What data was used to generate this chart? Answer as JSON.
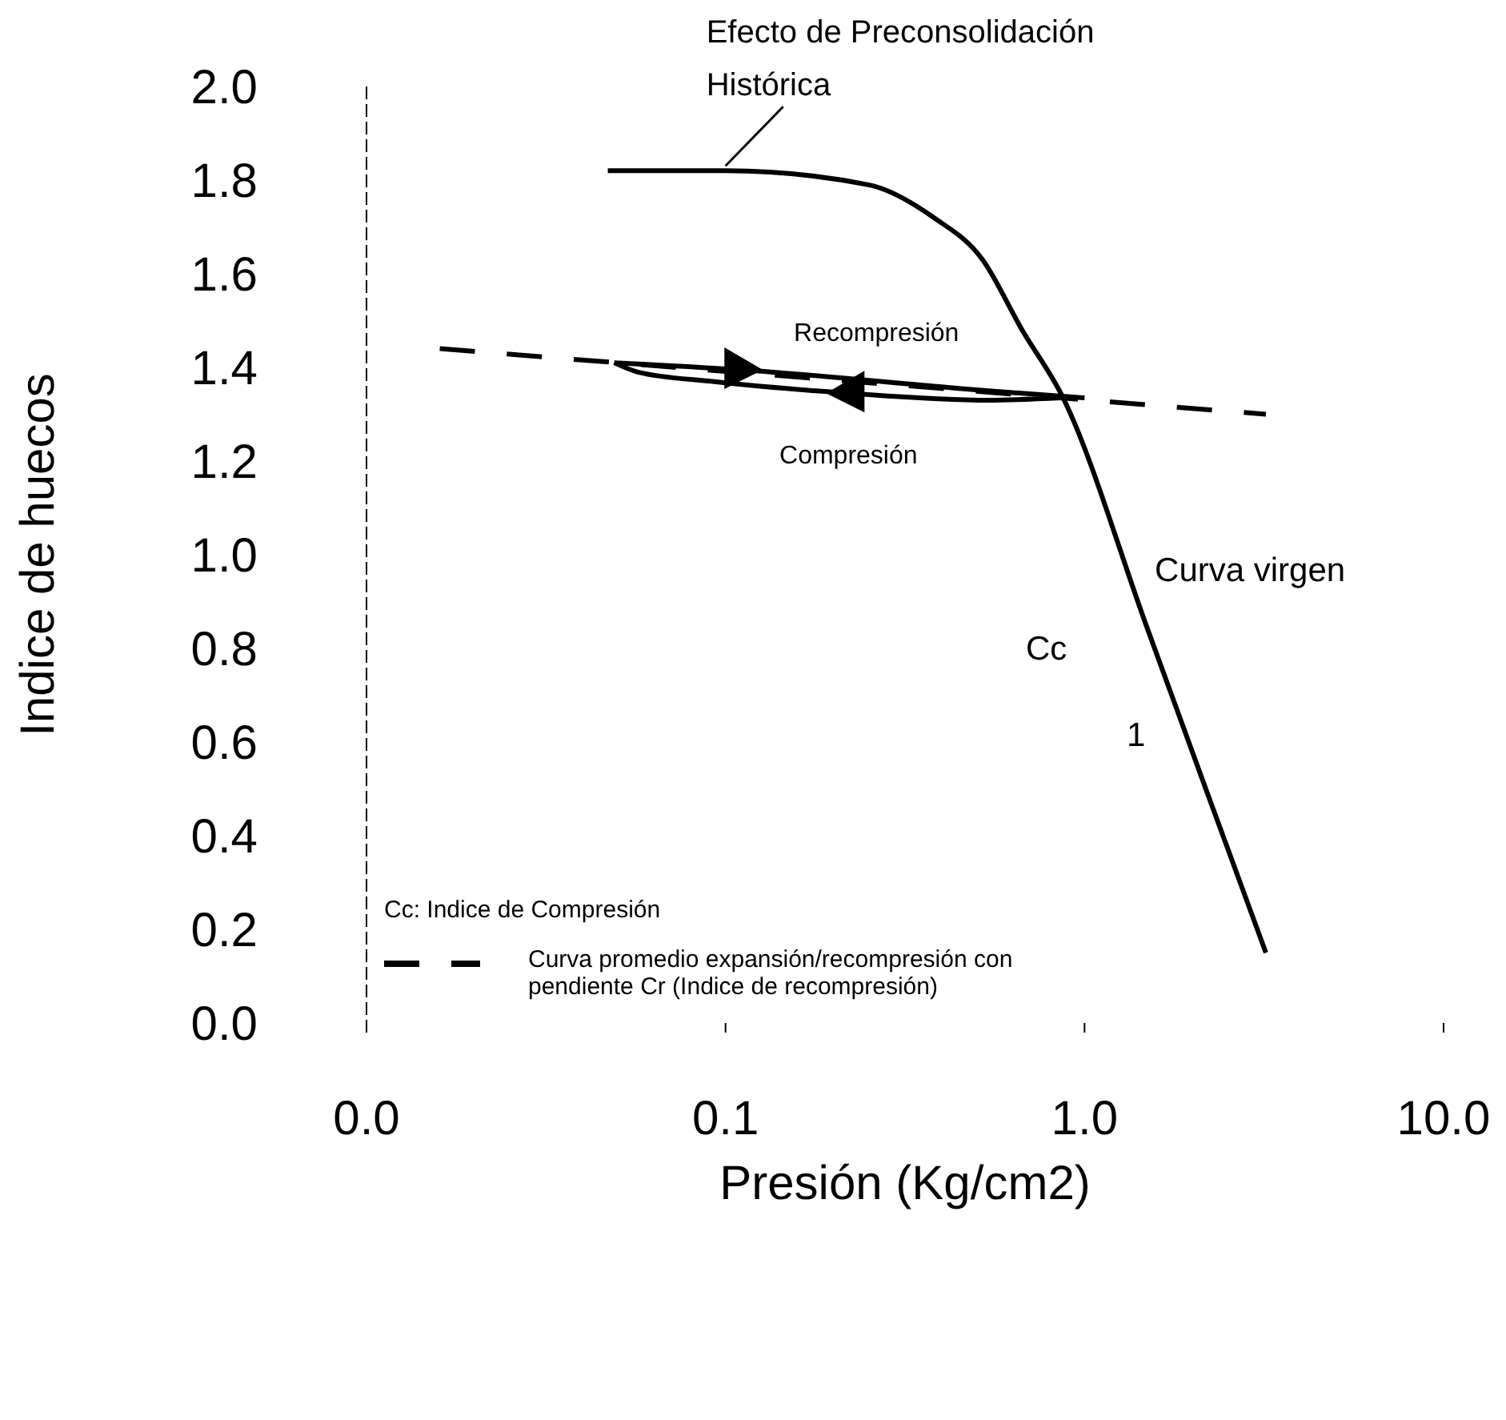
{
  "chart_data": {
    "type": "line",
    "xlabel": "Presión (Kg/cm2)",
    "ylabel": "Indice de huecos",
    "log": "x",
    "xlim": [
      0.01,
      10
    ],
    "xticks": [
      {
        "value": 0.01,
        "label": "0.0"
      },
      {
        "value": 0.1,
        "label": "0.1"
      },
      {
        "value": 1,
        "label": "1.0"
      },
      {
        "value": 10,
        "label": "10.0"
      }
    ],
    "ylim": [
      0,
      2
    ],
    "yticks": [
      {
        "value": 0,
        "label": "0.0"
      },
      {
        "value": 0.2,
        "label": "0.2"
      },
      {
        "value": 0.4,
        "label": "0.4"
      },
      {
        "value": 0.6,
        "label": "0.6"
      },
      {
        "value": 0.8,
        "label": "0.8"
      },
      {
        "value": 1,
        "label": "1.0"
      },
      {
        "value": 1.2,
        "label": "1.2"
      },
      {
        "value": 1.4,
        "label": "1.4"
      },
      {
        "value": 1.6,
        "label": "1.6"
      },
      {
        "value": 1.8,
        "label": "1.8"
      },
      {
        "value": 2,
        "label": "2.0"
      }
    ],
    "marker": "none",
    "legend": "bottom left",
    "series": [
      {
        "name": "Curva virgen",
        "color": "#000000",
        "line_style": "solid",
        "x": [
          0.047,
          0.1,
          0.25,
          0.38,
          0.52,
          0.67,
          0.865,
          1.5,
          2.2,
          3.2
        ],
        "values": [
          1.82,
          1.82,
          1.79,
          1.72,
          1.63,
          1.48,
          1.34,
          0.84,
          0.49,
          0.15
        ]
      },
      {
        "name": "Curva promedio expansión/recompresión con pendiente Cr (Indice de recompresión)",
        "color": "#000000",
        "line_style": "dashed",
        "x": [
          0.016,
          3.2
        ],
        "values": [
          1.44,
          1.3
        ]
      },
      {
        "name": "Recompresión",
        "color": "#000000",
        "line_style": "solid",
        "x": [
          0.049,
          0.11,
          0.54,
          1.0
        ],
        "values": [
          1.41,
          1.395,
          1.35,
          1.335
        ]
      },
      {
        "name": "Compresión",
        "color": "#000000",
        "line_style": "solid",
        "x": [
          0.049,
          0.057,
          0.092,
          0.22,
          0.54,
          0.86
        ],
        "values": [
          1.41,
          1.39,
          1.37,
          1.345,
          1.33,
          1.335
        ]
      }
    ],
    "annotations": [
      {
        "text": "Efecto de Preconsolidación Histórica",
        "x": 0.1,
        "y": 1.82
      },
      "Cc",
      "1",
      "Cc:  Indice de Compresión"
    ]
  }
}
